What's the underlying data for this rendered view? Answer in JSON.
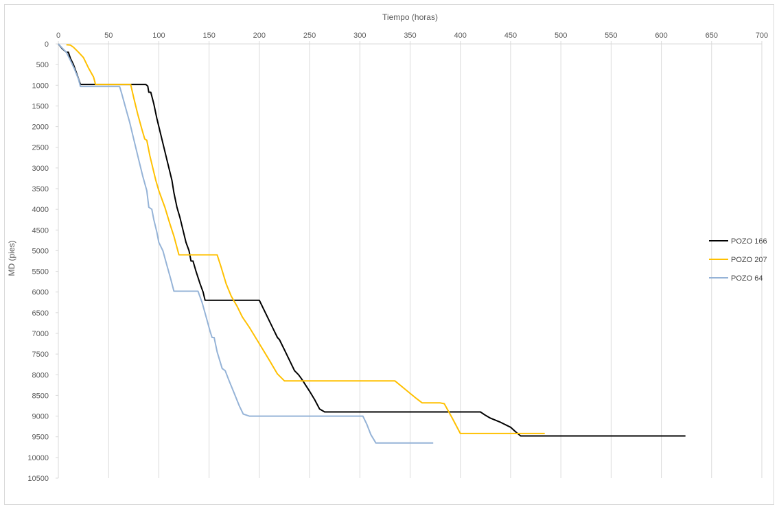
{
  "chart_data": {
    "type": "line",
    "title": "",
    "xlabel": "Tiempo (horas)",
    "ylabel": "MD (pies)",
    "x_axis_position": "top",
    "y_axis_inverted": true,
    "xlim": [
      0,
      700
    ],
    "ylim": [
      0,
      10500
    ],
    "x_ticks": [
      0,
      50,
      100,
      150,
      200,
      250,
      300,
      350,
      400,
      450,
      500,
      550,
      600,
      650,
      700
    ],
    "y_ticks": [
      0,
      500,
      1000,
      1500,
      2000,
      2500,
      3000,
      3500,
      4000,
      4500,
      5000,
      5500,
      6000,
      6500,
      7000,
      7500,
      8000,
      8500,
      9000,
      9500,
      10000,
      10500
    ],
    "grid": "vertical",
    "legend_position": "right",
    "series": [
      {
        "name": "POZO 166",
        "color": "#000000",
        "points": [
          [
            0,
            0
          ],
          [
            4,
            120
          ],
          [
            8,
            200
          ],
          [
            10,
            200
          ],
          [
            12,
            350
          ],
          [
            15,
            500
          ],
          [
            18,
            700
          ],
          [
            22,
            980
          ],
          [
            40,
            980
          ],
          [
            60,
            980
          ],
          [
            80,
            980
          ],
          [
            87,
            980
          ],
          [
            89,
            1020
          ],
          [
            90,
            1170
          ],
          [
            92,
            1170
          ],
          [
            95,
            1450
          ],
          [
            98,
            1800
          ],
          [
            101,
            2100
          ],
          [
            104,
            2400
          ],
          [
            107,
            2700
          ],
          [
            110,
            3000
          ],
          [
            113,
            3300
          ],
          [
            115,
            3600
          ],
          [
            118,
            3950
          ],
          [
            121,
            4200
          ],
          [
            124,
            4500
          ],
          [
            127,
            4800
          ],
          [
            130,
            5000
          ],
          [
            132,
            5250
          ],
          [
            134,
            5250
          ],
          [
            137,
            5500
          ],
          [
            141,
            5800
          ],
          [
            144,
            6000
          ],
          [
            146,
            6200
          ],
          [
            150,
            6200
          ],
          [
            170,
            6200
          ],
          [
            190,
            6200
          ],
          [
            200,
            6200
          ],
          [
            204,
            6400
          ],
          [
            208,
            6600
          ],
          [
            213,
            6850
          ],
          [
            218,
            7100
          ],
          [
            220,
            7150
          ],
          [
            225,
            7400
          ],
          [
            230,
            7650
          ],
          [
            235,
            7900
          ],
          [
            239,
            8000
          ],
          [
            242,
            8100
          ],
          [
            250,
            8400
          ],
          [
            255,
            8600
          ],
          [
            260,
            8830
          ],
          [
            265,
            8900
          ],
          [
            280,
            8900
          ],
          [
            320,
            8900
          ],
          [
            380,
            8900
          ],
          [
            420,
            8900
          ],
          [
            425,
            8980
          ],
          [
            430,
            9050
          ],
          [
            440,
            9150
          ],
          [
            450,
            9270
          ],
          [
            455,
            9380
          ],
          [
            460,
            9480
          ],
          [
            500,
            9480
          ],
          [
            560,
            9480
          ],
          [
            624,
            9480
          ]
        ]
      },
      {
        "name": "POZO 207",
        "color": "#ffc000",
        "points": [
          [
            8,
            20
          ],
          [
            12,
            30
          ],
          [
            15,
            80
          ],
          [
            20,
            200
          ],
          [
            25,
            330
          ],
          [
            30,
            580
          ],
          [
            35,
            800
          ],
          [
            37,
            980
          ],
          [
            50,
            980
          ],
          [
            65,
            980
          ],
          [
            72,
            980
          ],
          [
            75,
            1300
          ],
          [
            79,
            1700
          ],
          [
            83,
            2050
          ],
          [
            86,
            2300
          ],
          [
            88,
            2330
          ],
          [
            91,
            2700
          ],
          [
            95,
            3100
          ],
          [
            97,
            3300
          ],
          [
            100,
            3550
          ],
          [
            106,
            3950
          ],
          [
            111,
            4350
          ],
          [
            115,
            4650
          ],
          [
            120,
            5100
          ],
          [
            140,
            5100
          ],
          [
            158,
            5100
          ],
          [
            162,
            5400
          ],
          [
            167,
            5800
          ],
          [
            172,
            6100
          ],
          [
            178,
            6350
          ],
          [
            183,
            6600
          ],
          [
            190,
            6850
          ],
          [
            200,
            7250
          ],
          [
            210,
            7650
          ],
          [
            218,
            7980
          ],
          [
            225,
            8150
          ],
          [
            240,
            8150
          ],
          [
            280,
            8150
          ],
          [
            320,
            8150
          ],
          [
            335,
            8150
          ],
          [
            345,
            8350
          ],
          [
            355,
            8550
          ],
          [
            362,
            8680
          ],
          [
            380,
            8680
          ],
          [
            384,
            8700
          ],
          [
            392,
            9050
          ],
          [
            400,
            9420
          ],
          [
            420,
            9420
          ],
          [
            460,
            9420
          ],
          [
            484,
            9420
          ]
        ]
      },
      {
        "name": "POZO 64",
        "color": "#95b3d7",
        "points": [
          [
            0,
            0
          ],
          [
            5,
            130
          ],
          [
            8,
            200
          ],
          [
            12,
            400
          ],
          [
            16,
            600
          ],
          [
            20,
            850
          ],
          [
            22,
            1030
          ],
          [
            40,
            1030
          ],
          [
            61,
            1030
          ],
          [
            63,
            1200
          ],
          [
            67,
            1550
          ],
          [
            71,
            1900
          ],
          [
            75,
            2300
          ],
          [
            80,
            2800
          ],
          [
            84,
            3200
          ],
          [
            88,
            3550
          ],
          [
            90,
            3950
          ],
          [
            93,
            4000
          ],
          [
            95,
            4250
          ],
          [
            98,
            4550
          ],
          [
            100,
            4800
          ],
          [
            104,
            5000
          ],
          [
            108,
            5350
          ],
          [
            112,
            5700
          ],
          [
            115,
            5980
          ],
          [
            125,
            5980
          ],
          [
            139,
            5980
          ],
          [
            143,
            6250
          ],
          [
            147,
            6600
          ],
          [
            151,
            6950
          ],
          [
            153,
            7100
          ],
          [
            155,
            7100
          ],
          [
            158,
            7450
          ],
          [
            163,
            7850
          ],
          [
            166,
            7900
          ],
          [
            170,
            8150
          ],
          [
            175,
            8450
          ],
          [
            180,
            8750
          ],
          [
            184,
            8950
          ],
          [
            190,
            9000
          ],
          [
            230,
            9000
          ],
          [
            270,
            9000
          ],
          [
            303,
            9000
          ],
          [
            307,
            9200
          ],
          [
            311,
            9450
          ],
          [
            316,
            9650
          ],
          [
            340,
            9650
          ],
          [
            373,
            9650
          ]
        ]
      }
    ]
  }
}
